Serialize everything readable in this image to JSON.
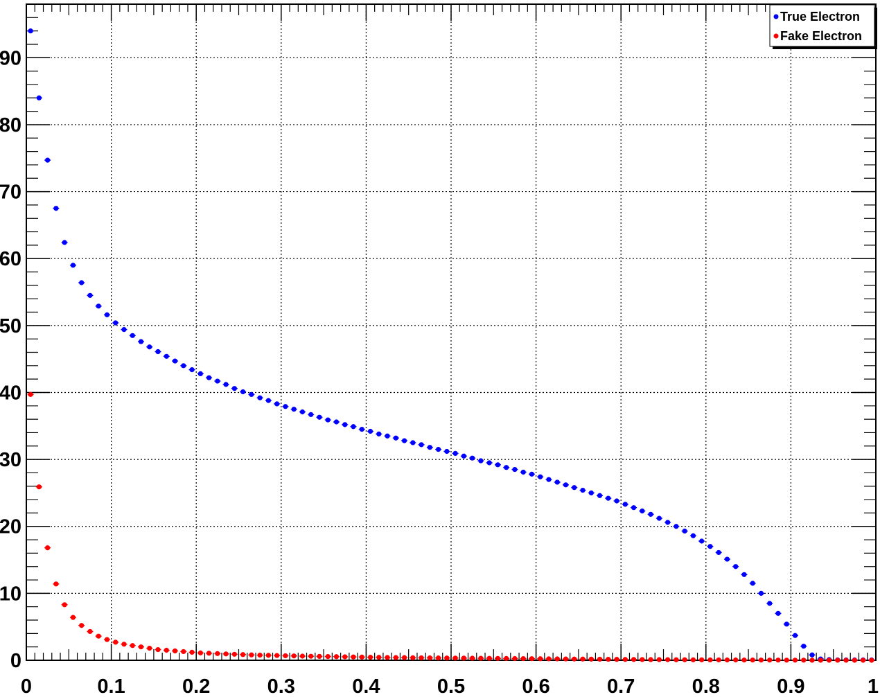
{
  "chart_data": {
    "type": "scatter",
    "title": "",
    "xlabel": "",
    "ylabel": "",
    "xlim": [
      0,
      1
    ],
    "ylim": [
      0,
      98
    ],
    "grid": true,
    "legend_position": "top-right",
    "x_ticks": [
      "0",
      "0.1",
      "0.2",
      "0.3",
      "0.4",
      "0.5",
      "0.6",
      "0.7",
      "0.8",
      "0.9",
      "1"
    ],
    "y_ticks": [
      "0",
      "10",
      "20",
      "30",
      "40",
      "50",
      "60",
      "70",
      "80",
      "90"
    ],
    "x": [
      0.005,
      0.015,
      0.025,
      0.035,
      0.045,
      0.055,
      0.065,
      0.075,
      0.085,
      0.095,
      0.105,
      0.115,
      0.125,
      0.135,
      0.145,
      0.155,
      0.165,
      0.175,
      0.185,
      0.195,
      0.205,
      0.215,
      0.225,
      0.235,
      0.245,
      0.255,
      0.265,
      0.275,
      0.285,
      0.295,
      0.305,
      0.315,
      0.325,
      0.335,
      0.345,
      0.355,
      0.365,
      0.375,
      0.385,
      0.395,
      0.405,
      0.415,
      0.425,
      0.435,
      0.445,
      0.455,
      0.465,
      0.475,
      0.485,
      0.495,
      0.505,
      0.515,
      0.525,
      0.535,
      0.545,
      0.555,
      0.565,
      0.575,
      0.585,
      0.595,
      0.605,
      0.615,
      0.625,
      0.635,
      0.645,
      0.655,
      0.665,
      0.675,
      0.685,
      0.695,
      0.705,
      0.715,
      0.725,
      0.735,
      0.745,
      0.755,
      0.765,
      0.775,
      0.785,
      0.795,
      0.805,
      0.815,
      0.825,
      0.835,
      0.845,
      0.855,
      0.865,
      0.875,
      0.885,
      0.895,
      0.905,
      0.915,
      0.925,
      0.935,
      0.945,
      0.955,
      0.965,
      0.975,
      0.985,
      0.995
    ],
    "series": [
      {
        "name": "True Electron",
        "color": "#0000ff",
        "values": [
          94.0,
          84.0,
          74.7,
          67.5,
          62.4,
          59.0,
          56.4,
          54.5,
          52.9,
          51.6,
          50.4,
          49.4,
          48.5,
          47.6,
          46.8,
          46.1,
          45.4,
          44.7,
          44.0,
          43.4,
          42.8,
          42.2,
          41.7,
          41.2,
          40.6,
          40.1,
          39.7,
          39.2,
          38.8,
          38.3,
          37.9,
          37.5,
          37.1,
          36.7,
          36.3,
          35.9,
          35.6,
          35.2,
          34.9,
          34.5,
          34.2,
          33.8,
          33.5,
          33.2,
          32.8,
          32.5,
          32.2,
          31.8,
          31.5,
          31.2,
          30.9,
          30.5,
          30.2,
          29.8,
          29.5,
          29.2,
          28.8,
          28.5,
          28.1,
          27.8,
          27.4,
          27.0,
          26.6,
          26.2,
          25.8,
          25.4,
          25.0,
          24.6,
          24.2,
          23.8,
          23.3,
          22.8,
          22.3,
          21.8,
          21.2,
          20.6,
          20.0,
          19.3,
          18.6,
          17.8,
          17.0,
          16.1,
          15.1,
          14.0,
          12.8,
          11.5,
          10.0,
          8.5,
          7.0,
          5.4,
          3.7,
          2.1,
          0.8,
          0.2,
          0.1,
          0.05,
          0.05,
          0.05,
          0.05,
          0.05
        ]
      },
      {
        "name": "Fake Electron",
        "color": "#ff0000",
        "values": [
          39.7,
          25.9,
          16.8,
          11.4,
          8.3,
          6.4,
          5.2,
          4.3,
          3.6,
          3.1,
          2.7,
          2.4,
          2.2,
          2.0,
          1.8,
          1.6,
          1.5,
          1.4,
          1.3,
          1.2,
          1.1,
          1.05,
          1.0,
          0.95,
          0.9,
          0.85,
          0.8,
          0.77,
          0.74,
          0.71,
          0.68,
          0.65,
          0.62,
          0.6,
          0.58,
          0.56,
          0.54,
          0.52,
          0.5,
          0.48,
          0.46,
          0.44,
          0.42,
          0.41,
          0.4,
          0.38,
          0.37,
          0.36,
          0.35,
          0.34,
          0.33,
          0.32,
          0.31,
          0.3,
          0.29,
          0.28,
          0.27,
          0.26,
          0.25,
          0.24,
          0.23,
          0.22,
          0.21,
          0.2,
          0.19,
          0.18,
          0.17,
          0.16,
          0.15,
          0.14,
          0.13,
          0.12,
          0.11,
          0.1,
          0.1,
          0.09,
          0.08,
          0.08,
          0.07,
          0.07,
          0.06,
          0.06,
          0.05,
          0.05,
          0.04,
          0.04,
          0.03,
          0.03,
          0.03,
          0.02,
          0.02,
          0.02,
          0.01,
          0.01,
          0.01,
          0.01,
          0.01,
          0.0,
          0.0,
          0.0
        ]
      }
    ]
  }
}
